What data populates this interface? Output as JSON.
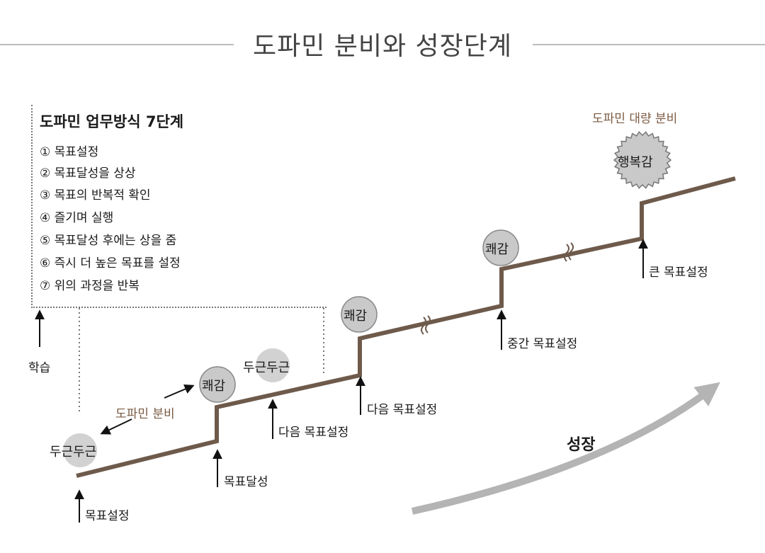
{
  "title": "도파민 분비와 성장단계",
  "steps_box": {
    "title": "도파민 업무방식 7단계",
    "steps": [
      "① 목표설정",
      "② 목표달성을 상상",
      "③ 목표의 반복적 확인",
      "④ 즐기며 실행",
      "⑤ 목표달성 후에는 상을 줌",
      "⑥ 즉시 더 높은 목표를 설정",
      "⑦ 위의 과정을 반복"
    ]
  },
  "labels": {
    "learning": "학습",
    "dopamine_release": "도파민 분비",
    "dopamine_mass_release": "도파민 대량 분비",
    "growth": "성장"
  },
  "badges": {
    "pounding_1": "두근두근",
    "pounding_2": "두근두근",
    "pleasure_1": "쾌감",
    "pleasure_2": "쾌감",
    "pleasure_3": "쾌감",
    "happiness": "행복감"
  },
  "milestones": {
    "goal_setting": "목표설정",
    "goal_achieved": "목표달성",
    "next_goal_1": "다음 목표설정",
    "next_goal_2": "다음 목표설정",
    "mid_goal": "중간 목표설정",
    "big_goal": "큰 목표설정"
  },
  "colors": {
    "staircase": "#6e5a4b",
    "badge_fill": "#c9c9c9",
    "dopamine_text": "#7a5a42",
    "growth_arrow": "#b4b4b4",
    "rule": "#bdbdbd"
  }
}
